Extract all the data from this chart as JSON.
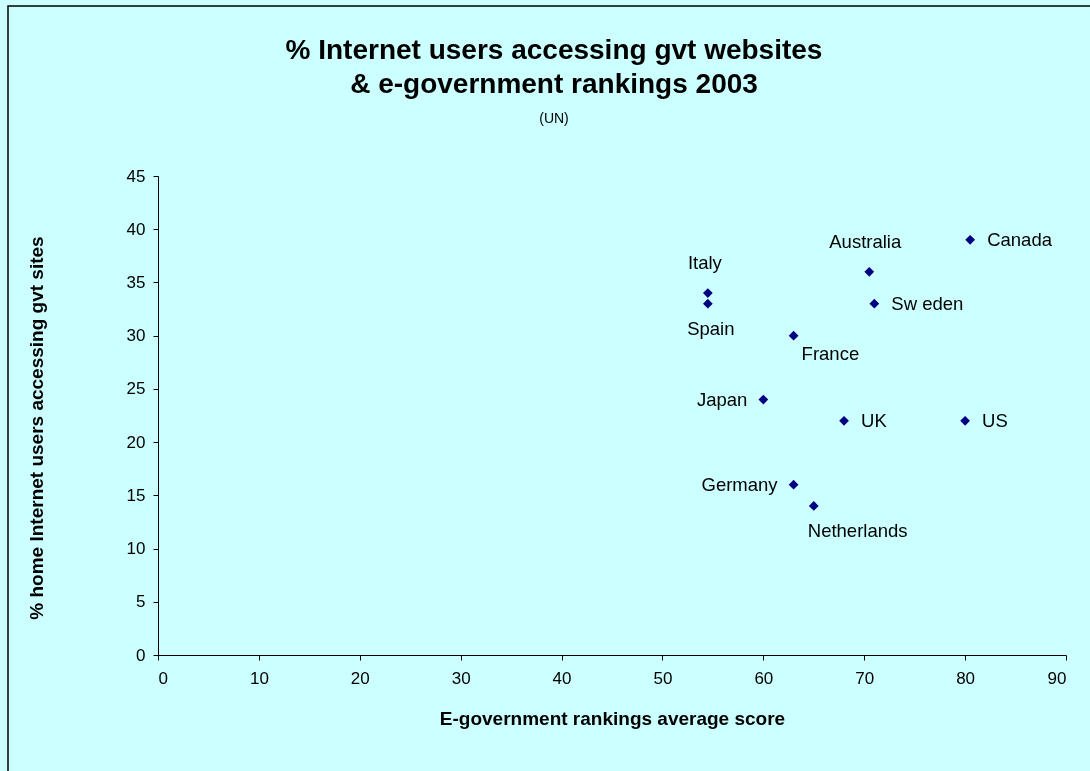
{
  "chart_data": {
    "type": "scatter",
    "title": "% Internet users accessing gvt websites\n& e-government rankings 2003",
    "subtitle": "(UN)",
    "xlabel": "E-government rankings average score",
    "ylabel": "% home Internet users accessing gvt sites",
    "series": [
      {
        "color": "#000080",
        "x": [
          80.5,
          70.5,
          54.5,
          54.5,
          71,
          63,
          60,
          68,
          80,
          63,
          65
        ],
        "values": [
          39,
          36,
          34,
          33,
          33,
          30,
          24,
          22,
          22,
          16,
          14
        ]
      }
    ],
    "marker": "diamond",
    "xlim": [
      0,
      90
    ],
    "xticks": [
      0,
      10,
      20,
      30,
      40,
      50,
      60,
      70,
      80,
      90
    ],
    "ylim": [
      0,
      45
    ],
    "yticks": [
      0,
      5,
      10,
      15,
      20,
      25,
      30,
      35,
      40,
      45
    ],
    "annotations": [
      {
        "text": "Canada",
        "x": 80.5,
        "y": 39
      },
      {
        "text": "Australia",
        "x": 70.5,
        "y": 36
      },
      {
        "text": "Italy",
        "x": 54.5,
        "y": 34
      },
      {
        "text": "Spain",
        "x": 54.5,
        "y": 33
      },
      {
        "text": "Sw eden",
        "x": 71,
        "y": 33
      },
      {
        "text": "France",
        "x": 63,
        "y": 30
      },
      {
        "text": "Japan",
        "x": 60,
        "y": 24
      },
      {
        "text": "UK",
        "x": 68,
        "y": 22
      },
      {
        "text": "US",
        "x": 80,
        "y": 22
      },
      {
        "text": "Germany",
        "x": 63,
        "y": 16
      },
      {
        "text": "Netherlands",
        "x": 65,
        "y": 14
      }
    ]
  }
}
